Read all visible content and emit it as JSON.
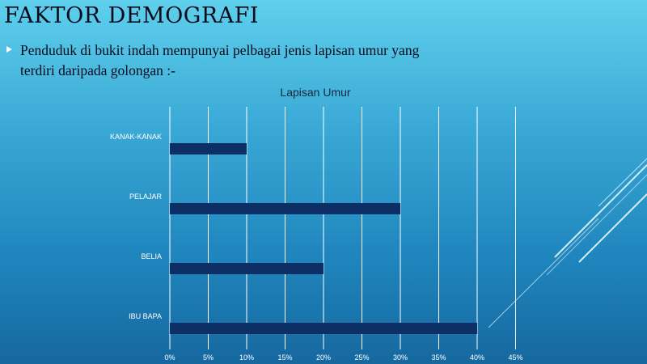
{
  "slide": {
    "title": "FAKTOR DEMOGRAFI",
    "bullet": "Penduduk  di bukit indah mempunyai  pelbagai jenis lapisan umur yang  terdiri daripada golongan  :-"
  },
  "chart_data": {
    "type": "bar",
    "orientation": "horizontal",
    "title": "Lapisan Umur",
    "categories": [
      "KANAK-KANAK",
      "PELAJAR",
      "BELIA",
      "IBU BAPA"
    ],
    "values": [
      10,
      30,
      20,
      40
    ],
    "unit": "%",
    "xlim": [
      0,
      45
    ],
    "xticks": [
      "0%",
      "5%",
      "10%",
      "15%",
      "20%",
      "25%",
      "30%",
      "35%",
      "40%",
      "45%"
    ],
    "grid": true,
    "bar_color": "#0e2f66",
    "grid_color": "#ffffff"
  }
}
